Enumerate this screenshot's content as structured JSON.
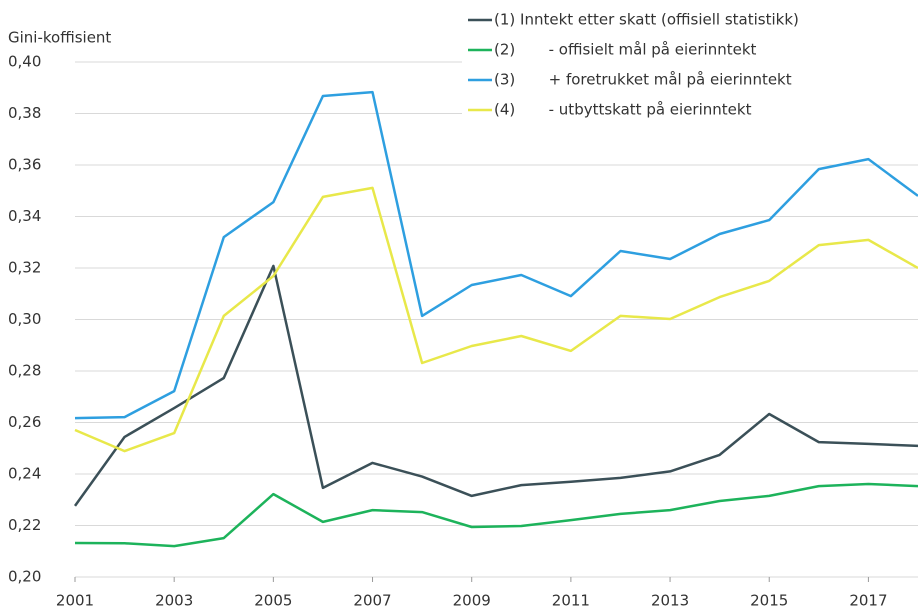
{
  "chart_data": {
    "type": "line",
    "ylabel": "Gini-koffisient",
    "x": [
      2001,
      2002,
      2003,
      2004,
      2005,
      2006,
      2007,
      2008,
      2009,
      2010,
      2011,
      2012,
      2013,
      2014,
      2015,
      2016,
      2017,
      2018
    ],
    "xlim": [
      2001,
      2018
    ],
    "xticks": [
      2001,
      2003,
      2005,
      2007,
      2009,
      2011,
      2013,
      2015,
      2017
    ],
    "ylim": [
      0.2,
      0.4
    ],
    "yticks": [
      {
        "value": 0.2,
        "label": "0,20"
      },
      {
        "value": 0.22,
        "label": "0,22"
      },
      {
        "value": 0.24,
        "label": "0,24"
      },
      {
        "value": 0.26,
        "label": "0,26"
      },
      {
        "value": 0.28,
        "label": "0,28"
      },
      {
        "value": 0.3,
        "label": "0,30"
      },
      {
        "value": 0.32,
        "label": "0,32"
      },
      {
        "value": 0.34,
        "label": "0,34"
      },
      {
        "value": 0.36,
        "label": "0,36"
      },
      {
        "value": 0.38,
        "label": "0,38"
      },
      {
        "value": 0.4,
        "label": "0,40"
      }
    ],
    "grid": true,
    "legend": "top-right",
    "series": [
      {
        "name": "(1) Inntekt etter skatt (offisiell statistikk)",
        "color": "#3b5058",
        "values": [
          0.2276,
          0.2544,
          0.2656,
          0.2773,
          0.3208,
          0.2346,
          0.2443,
          0.239,
          0.2315,
          0.2357,
          0.237,
          0.2385,
          0.241,
          0.2474,
          0.2633,
          0.2524,
          0.2517,
          0.2509
        ]
      },
      {
        "name": "(2)       - offisielt mål på eierinntekt",
        "color": "#1db35b",
        "values": [
          0.2132,
          0.2131,
          0.212,
          0.2151,
          0.2322,
          0.2214,
          0.226,
          0.2252,
          0.2194,
          0.2198,
          0.2221,
          0.2245,
          0.226,
          0.2295,
          0.2315,
          0.2353,
          0.2361,
          0.2353
        ]
      },
      {
        "name": "(3)       + foretrukket mål på eierinntekt",
        "color": "#2e9fe0",
        "values": [
          0.2617,
          0.2621,
          0.2722,
          0.332,
          0.3456,
          0.3868,
          0.3883,
          0.3014,
          0.3134,
          0.3173,
          0.3091,
          0.3266,
          0.3235,
          0.3332,
          0.3386,
          0.3584,
          0.3623,
          0.348
        ]
      },
      {
        "name": "(4)       - utbyttskatt på eierinntekt",
        "color": "#e8e84a",
        "values": [
          0.2571,
          0.2489,
          0.2559,
          0.3014,
          0.3169,
          0.3476,
          0.3511,
          0.2831,
          0.2897,
          0.2936,
          0.2878,
          0.3014,
          0.3002,
          0.3087,
          0.315,
          0.3289,
          0.3309,
          0.32
        ]
      }
    ]
  }
}
